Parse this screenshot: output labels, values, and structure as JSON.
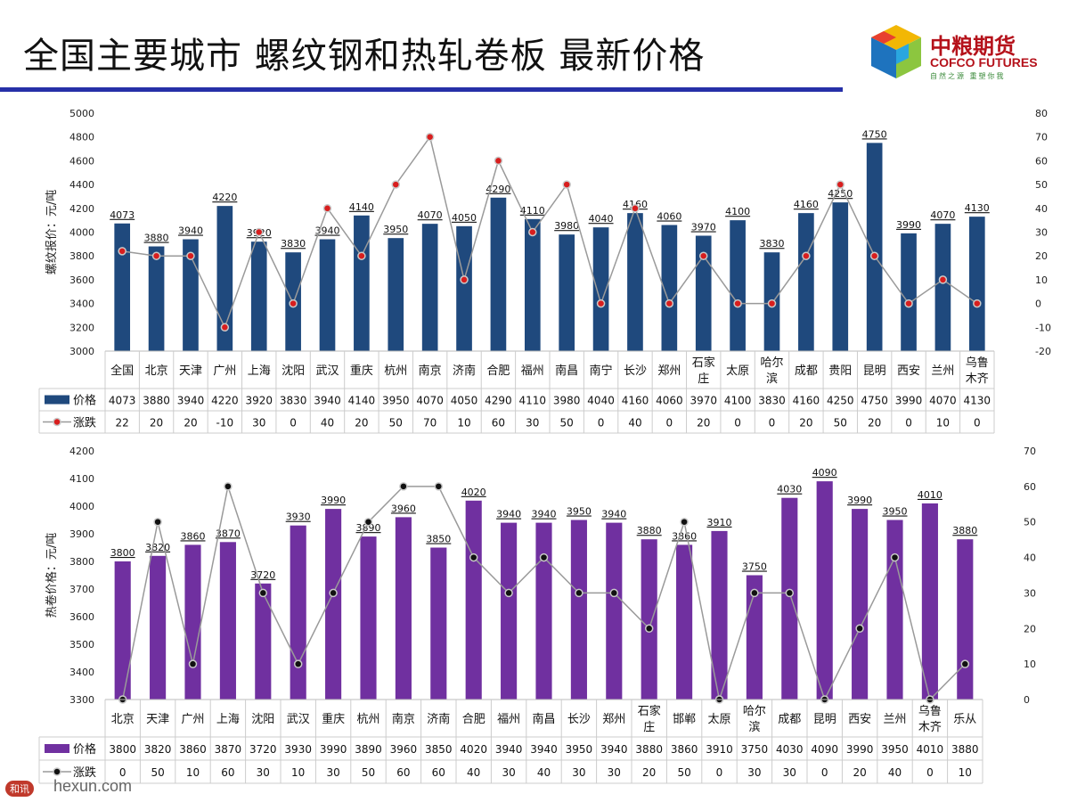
{
  "page": {
    "title": "全国主要城市  螺纹钢和热轧卷板    最新价格"
  },
  "logo": {
    "cn": "中粮期货",
    "en": "COFCO FUTURES",
    "slogan": "自然之源  重塑你我"
  },
  "watermark": {
    "mark": "和讯",
    "text": "hexun.com"
  },
  "colors": {
    "rebar_bar": "#1f497d",
    "coil_bar": "#7030a0",
    "line": "#9a9a9a",
    "rebar_marker": "#d81e1e",
    "coil_marker": "#111111",
    "title_rule": "#2630a8"
  },
  "chart_data": [
    {
      "type": "bar",
      "ylabel": "螺纹报价：元/吨",
      "ylim": [
        3000,
        5000
      ],
      "yticks": [
        3000,
        3200,
        3400,
        3600,
        3800,
        4000,
        4200,
        4400,
        4600,
        4800,
        5000
      ],
      "y2lim": [
        -20,
        80
      ],
      "y2ticks": [
        -20,
        -10,
        0,
        10,
        20,
        30,
        40,
        50,
        60,
        70,
        80
      ],
      "categories": [
        "全国",
        "北京",
        "天津",
        "广州",
        "上海",
        "沈阳",
        "武汉",
        "重庆",
        "杭州",
        "南京",
        "济南",
        "合肥",
        "福州",
        "南昌",
        "南宁",
        "长沙",
        "郑州",
        "石家庄",
        "太原",
        "哈尔滨",
        "成都",
        "贵阳",
        "昆明",
        "西安",
        "兰州",
        "乌鲁木齐"
      ],
      "series": [
        {
          "name": "价格",
          "kind": "bar",
          "axis": "left",
          "values": [
            4073,
            3880,
            3940,
            4220,
            3920,
            3830,
            3940,
            4140,
            3950,
            4070,
            4050,
            4290,
            4110,
            3980,
            4040,
            4160,
            4060,
            3970,
            4100,
            3830,
            4160,
            4250,
            4750,
            3990,
            4070,
            4130
          ]
        },
        {
          "name": "涨跌",
          "kind": "line",
          "axis": "right",
          "values": [
            22,
            20,
            20,
            -10,
            30,
            0,
            40,
            20,
            50,
            70,
            10,
            60,
            30,
            50,
            0,
            40,
            0,
            20,
            0,
            0,
            20,
            50,
            20,
            0,
            10,
            0
          ]
        }
      ]
    },
    {
      "type": "bar",
      "ylabel": "热卷价格：元/吨",
      "ylim": [
        3300,
        4200
      ],
      "yticks": [
        3300,
        3400,
        3500,
        3600,
        3700,
        3800,
        3900,
        4000,
        4100,
        4200
      ],
      "y2lim": [
        0,
        70
      ],
      "y2ticks": [
        0,
        10,
        20,
        30,
        40,
        50,
        60,
        70
      ],
      "categories": [
        "北京",
        "天津",
        "广州",
        "上海",
        "沈阳",
        "武汉",
        "重庆",
        "杭州",
        "南京",
        "济南",
        "合肥",
        "福州",
        "南昌",
        "长沙",
        "郑州",
        "石家庄",
        "邯郸",
        "太原",
        "哈尔滨",
        "成都",
        "昆明",
        "西安",
        "兰州",
        "乌鲁木齐",
        "乐从"
      ],
      "series": [
        {
          "name": "价格",
          "kind": "bar",
          "axis": "left",
          "values": [
            3800,
            3820,
            3860,
            3870,
            3720,
            3930,
            3990,
            3890,
            3960,
            3850,
            4020,
            3940,
            3940,
            3950,
            3940,
            3880,
            3860,
            3910,
            3750,
            4030,
            4090,
            3990,
            3950,
            4010,
            3880
          ]
        },
        {
          "name": "涨跌",
          "kind": "line",
          "axis": "right",
          "values": [
            0,
            50,
            10,
            60,
            30,
            10,
            30,
            50,
            60,
            60,
            40,
            30,
            40,
            30,
            30,
            20,
            50,
            0,
            30,
            30,
            0,
            20,
            40,
            0,
            10
          ]
        }
      ]
    }
  ]
}
